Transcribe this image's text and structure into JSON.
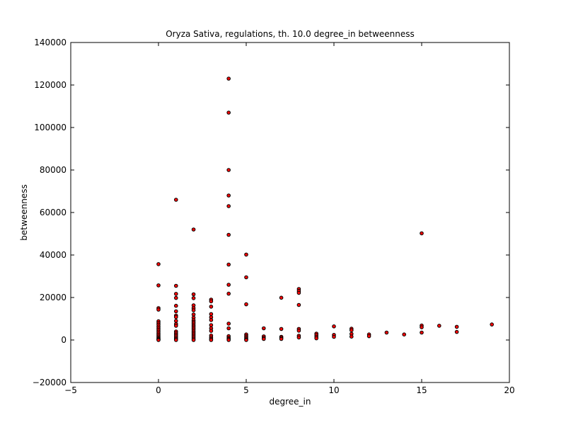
{
  "chart_data": {
    "type": "scatter",
    "title": "Oryza Sativa, regulations, th. 10.0 degree_in betweenness",
    "xlabel": "degree_in",
    "ylabel": "betweenness",
    "xlim": [
      -5,
      20
    ],
    "ylim": [
      -20000,
      140000
    ],
    "xticks": [
      -5,
      0,
      5,
      10,
      15,
      20
    ],
    "xtick_labels": [
      "−5",
      "0",
      "5",
      "10",
      "15",
      "20"
    ],
    "yticks": [
      -20000,
      0,
      20000,
      40000,
      60000,
      80000,
      100000,
      120000,
      140000
    ],
    "ytick_labels": [
      "−20000",
      "0",
      "20000",
      "40000",
      "60000",
      "80000",
      "100000",
      "120000",
      "140000"
    ],
    "grid": false,
    "marker_color": "#ff0000",
    "marker_edge_color": "#000000",
    "points": [
      [
        0,
        35700
      ],
      [
        0,
        25700
      ],
      [
        0,
        15000
      ],
      [
        0,
        14300
      ],
      [
        0,
        8800
      ],
      [
        0,
        8000
      ],
      [
        0,
        7200
      ],
      [
        0,
        6300
      ],
      [
        0,
        5500
      ],
      [
        0,
        4700
      ],
      [
        0,
        3900
      ],
      [
        0,
        3100
      ],
      [
        0,
        2400
      ],
      [
        0,
        1700
      ],
      [
        0,
        1100
      ],
      [
        0,
        600
      ],
      [
        0,
        250
      ],
      [
        0,
        0
      ],
      [
        1,
        66000
      ],
      [
        1,
        25500
      ],
      [
        1,
        21700
      ],
      [
        1,
        19800
      ],
      [
        1,
        16100
      ],
      [
        1,
        13500
      ],
      [
        1,
        11500
      ],
      [
        1,
        10800
      ],
      [
        1,
        9000
      ],
      [
        1,
        7500
      ],
      [
        1,
        6700
      ],
      [
        1,
        4000
      ],
      [
        1,
        3200
      ],
      [
        1,
        2500
      ],
      [
        1,
        1800
      ],
      [
        1,
        1100
      ],
      [
        1,
        500
      ],
      [
        1,
        0
      ],
      [
        2,
        52000
      ],
      [
        2,
        21500
      ],
      [
        2,
        19700
      ],
      [
        2,
        16300
      ],
      [
        2,
        15000
      ],
      [
        2,
        14000
      ],
      [
        2,
        12000
      ],
      [
        2,
        10500
      ],
      [
        2,
        9300
      ],
      [
        2,
        8500
      ],
      [
        2,
        7800
      ],
      [
        2,
        7000
      ],
      [
        2,
        6300
      ],
      [
        2,
        5600
      ],
      [
        2,
        4900
      ],
      [
        2,
        4100
      ],
      [
        2,
        3400
      ],
      [
        2,
        2700
      ],
      [
        2,
        2000
      ],
      [
        2,
        1300
      ],
      [
        2,
        600
      ],
      [
        2,
        0
      ],
      [
        3,
        19000
      ],
      [
        3,
        18200
      ],
      [
        3,
        15700
      ],
      [
        3,
        12200
      ],
      [
        3,
        10700
      ],
      [
        3,
        9400
      ],
      [
        3,
        7000
      ],
      [
        3,
        5500
      ],
      [
        3,
        4300
      ],
      [
        3,
        2100
      ],
      [
        3,
        1200
      ],
      [
        3,
        500
      ],
      [
        3,
        0
      ],
      [
        4,
        123000
      ],
      [
        4,
        107000
      ],
      [
        4,
        80000
      ],
      [
        4,
        68000
      ],
      [
        4,
        63000
      ],
      [
        4,
        49500
      ],
      [
        4,
        35500
      ],
      [
        4,
        26000
      ],
      [
        4,
        21800
      ],
      [
        4,
        7700
      ],
      [
        4,
        5500
      ],
      [
        4,
        1800
      ],
      [
        4,
        1000
      ],
      [
        4,
        500
      ],
      [
        4,
        0
      ],
      [
        5,
        40200
      ],
      [
        5,
        29500
      ],
      [
        5,
        16800
      ],
      [
        5,
        2600
      ],
      [
        5,
        1900
      ],
      [
        5,
        1300
      ],
      [
        5,
        700
      ],
      [
        5,
        200
      ],
      [
        5,
        0
      ],
      [
        6,
        5500
      ],
      [
        6,
        1700
      ],
      [
        6,
        1000
      ],
      [
        6,
        500
      ],
      [
        7,
        19900
      ],
      [
        7,
        5200
      ],
      [
        7,
        1500
      ],
      [
        7,
        1000
      ],
      [
        7,
        500
      ],
      [
        8,
        24000
      ],
      [
        8,
        23100
      ],
      [
        8,
        22200
      ],
      [
        8,
        16500
      ],
      [
        8,
        5200
      ],
      [
        8,
        4400
      ],
      [
        8,
        2000
      ],
      [
        8,
        1200
      ],
      [
        9,
        3000
      ],
      [
        9,
        2300
      ],
      [
        9,
        1500
      ],
      [
        9,
        800
      ],
      [
        10,
        6400
      ],
      [
        10,
        2400
      ],
      [
        10,
        1500
      ],
      [
        11,
        5300
      ],
      [
        11,
        4600
      ],
      [
        11,
        2900
      ],
      [
        11,
        1600
      ],
      [
        12,
        2600
      ],
      [
        12,
        1800
      ],
      [
        13,
        3500
      ],
      [
        14,
        2600
      ],
      [
        15,
        50200
      ],
      [
        15,
        6800
      ],
      [
        15,
        6000
      ],
      [
        15,
        3500
      ],
      [
        16,
        6700
      ],
      [
        17,
        6200
      ],
      [
        17,
        3800
      ],
      [
        19,
        7300
      ]
    ]
  }
}
